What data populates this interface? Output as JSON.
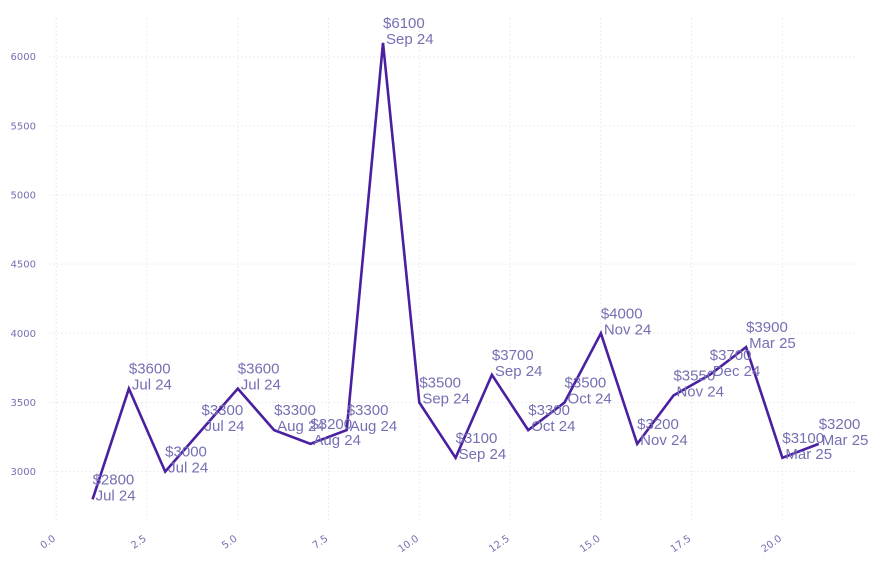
{
  "chart_data": {
    "type": "line",
    "title": "",
    "xlabel": "",
    "ylabel": "",
    "xlim": [
      -0.2,
      22
    ],
    "ylim": [
      2650,
      6280
    ],
    "x_ticks": [
      "0.0",
      "2.5",
      "5.0",
      "7.5",
      "10.0",
      "12.5",
      "15.0",
      "17.5",
      "20.0"
    ],
    "y_ticks": [
      "3000",
      "3500",
      "4000",
      "4500",
      "5000",
      "5500",
      "6000"
    ],
    "grid": true,
    "legend": "none",
    "series": [
      {
        "color": "#4a1fa0",
        "x": [
          1,
          2,
          3,
          4,
          5,
          6,
          7,
          8,
          9,
          10,
          11,
          12,
          13,
          14,
          15,
          16,
          17,
          18,
          19,
          20,
          21
        ],
        "y": [
          2800,
          3600,
          3000,
          3300,
          3600,
          3300,
          3200,
          3300,
          6100,
          3500,
          3100,
          3700,
          3300,
          3500,
          4000,
          3200,
          3550,
          3700,
          3900,
          3100,
          3200
        ]
      }
    ],
    "annotations": [
      {
        "price": "$2800",
        "date": "Jul 24"
      },
      {
        "price": "$3600",
        "date": "Jul 24"
      },
      {
        "price": "$3000",
        "date": "Jul 24"
      },
      {
        "price": "$3300",
        "date": "Jul 24"
      },
      {
        "price": "$3600",
        "date": "Jul 24"
      },
      {
        "price": "$3300",
        "date": "Aug 24"
      },
      {
        "price": "$3200",
        "date": "Aug 24"
      },
      {
        "price": "$3300",
        "date": "Aug 24"
      },
      {
        "price": "$6100",
        "date": "Sep 24"
      },
      {
        "price": "$3500",
        "date": "Sep 24"
      },
      {
        "price": "$3100",
        "date": "Sep 24"
      },
      {
        "price": "$3700",
        "date": "Sep 24"
      },
      {
        "price": "$3300",
        "date": "Oct 24"
      },
      {
        "price": "$3500",
        "date": "Oct 24"
      },
      {
        "price": "$4000",
        "date": "Nov 24"
      },
      {
        "price": "$3200",
        "date": "Nov 24"
      },
      {
        "price": "$3550",
        "date": "Nov 24"
      },
      {
        "price": "$3700",
        "date": "Dec 24"
      },
      {
        "price": "$3900",
        "date": "Mar 25"
      },
      {
        "price": "$3100",
        "date": "Mar 25"
      },
      {
        "price": "$3200",
        "date": "Mar 25"
      }
    ]
  }
}
